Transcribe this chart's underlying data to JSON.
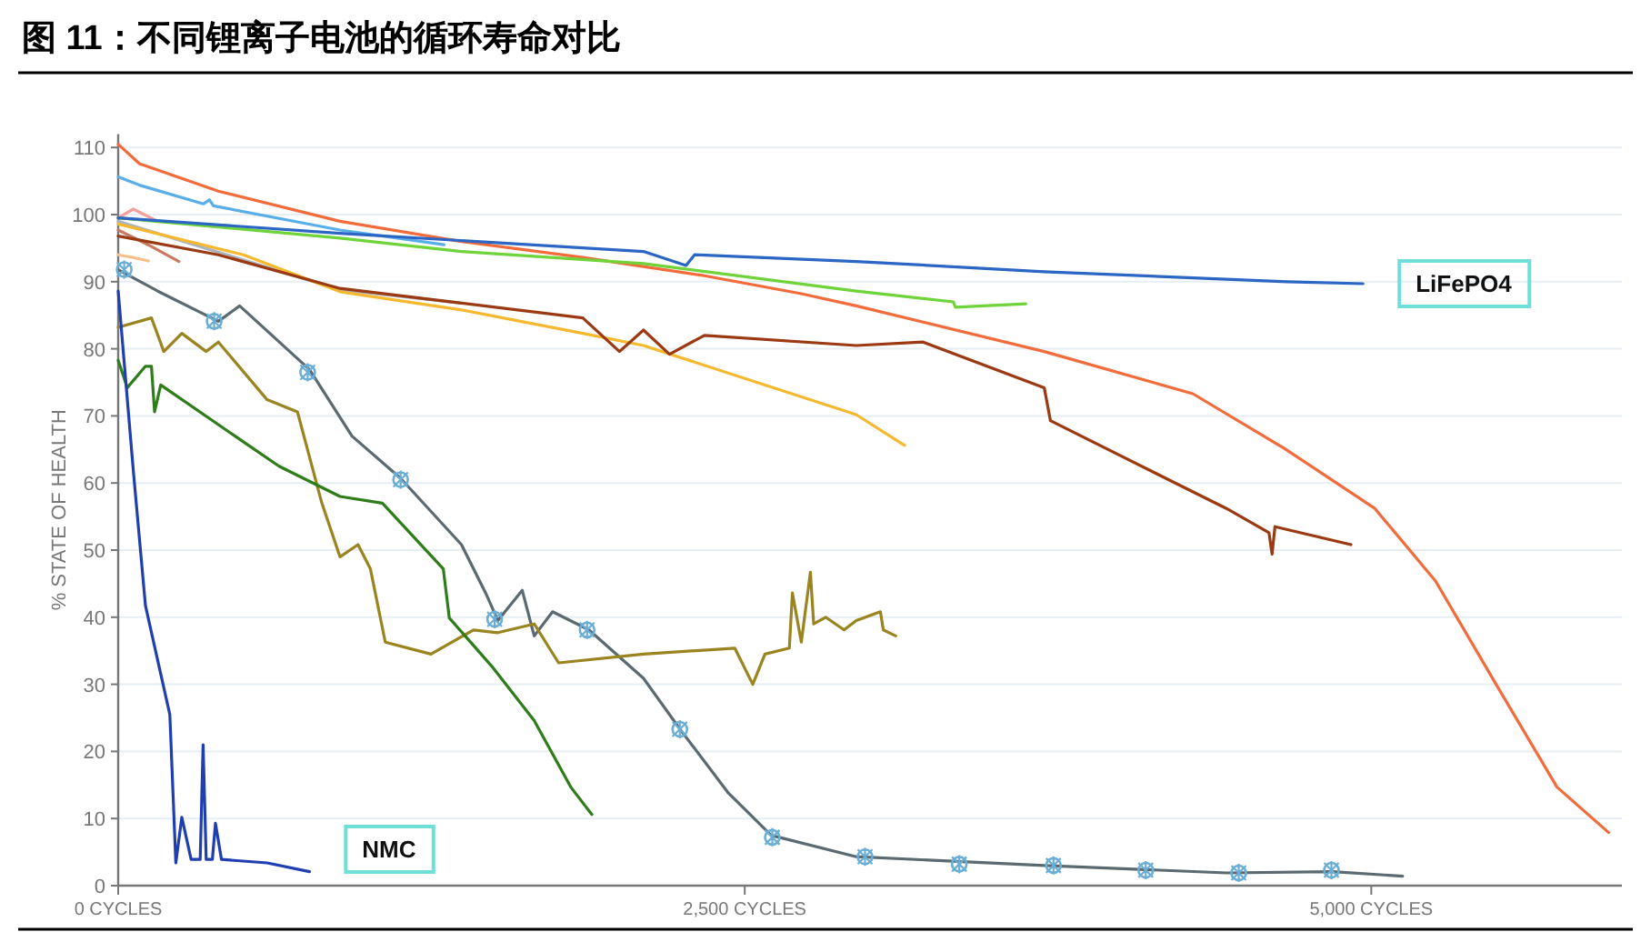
{
  "chart_data": {
    "type": "line",
    "title": "图 11：不同锂离子电池的循环寿命对比",
    "ylabel": "% STATE OF HEALTH",
    "xlim": [
      0,
      6000
    ],
    "ylim": [
      0,
      112
    ],
    "xticks": [
      {
        "value": 0,
        "label": "0 CYCLES"
      },
      {
        "value": 2500,
        "label": "2,500 CYCLES"
      },
      {
        "value": 5000,
        "label": "5,000 CYCLES"
      }
    ],
    "yticks": [
      0,
      10,
      20,
      30,
      40,
      50,
      60,
      70,
      80,
      90,
      100,
      110
    ],
    "grid": "y",
    "marker": "none",
    "line_style": "solid",
    "series": [
      {
        "color": "#f26b3a",
        "x": [
          0,
          85,
          400,
          885,
          1370,
          1854,
          2339,
          2726,
          2945,
          3695,
          4288,
          4651,
          5014,
          5256,
          5498,
          5741,
          5947
        ],
        "values": [
          110.5,
          107.6,
          103.5,
          99,
          96,
          93.6,
          90.9,
          88.2,
          86.4,
          79.6,
          73.3,
          65.2,
          56.2,
          45.4,
          30,
          14.7,
          7.9
        ]
      },
      {
        "color": "#5aaee8",
        "x": [
          0,
          85,
          340,
          364,
          380,
          885,
          1300
        ],
        "values": [
          105.6,
          104.4,
          101.6,
          102.2,
          101.3,
          97.7,
          95.5
        ]
      },
      {
        "color": "#f0a0a0",
        "x": [
          0,
          60,
          158
        ],
        "values": [
          99.5,
          100.8,
          99
        ]
      },
      {
        "color": "#c87a60",
        "x": [
          0,
          120,
          242
        ],
        "values": [
          97.7,
          95.5,
          93
        ]
      },
      {
        "color": "#f7c08a",
        "x": [
          0,
          60,
          121
        ],
        "values": [
          94,
          93.6,
          93.1
        ]
      },
      {
        "color": "#a9b4bf",
        "x": [
          0,
          885,
          1370
        ],
        "values": [
          99,
          88.8,
          86.8
        ]
      },
      {
        "color": "#6fd33a",
        "x": [
          0,
          885,
          1370,
          2096,
          2945,
          3332,
          3340,
          3622
        ],
        "values": [
          99.5,
          96.5,
          94.5,
          92.7,
          88.6,
          87,
          86.2,
          86.7
        ]
      },
      {
        "color": "#f5b82e",
        "x": [
          0,
          500,
          885,
          1370,
          1854,
          2096,
          2945,
          3138
        ],
        "values": [
          98.6,
          94,
          88.5,
          85.8,
          82.3,
          80.5,
          70.2,
          65.6
        ]
      },
      {
        "color": "#9b3a12",
        "x": [
          0,
          400,
          885,
          1370,
          1854,
          2000,
          2096,
          2200,
          2339,
          2945,
          3211,
          3695,
          3720,
          4180,
          4422,
          4592,
          4604,
          4616,
          4919
        ],
        "values": [
          96.8,
          94,
          89,
          86.8,
          84.6,
          79.6,
          82.8,
          79.2,
          82,
          80.5,
          81,
          74.2,
          69.3,
          60.7,
          56.2,
          52.6,
          49.4,
          53.5,
          50.8
        ]
      },
      {
        "color": "#2b66c4",
        "name": "LiFePO4",
        "x": [
          0,
          885,
          2096,
          2266,
          2300,
          2945,
          3695,
          4664,
          4967
        ],
        "values": [
          99.5,
          97.2,
          94.5,
          92.4,
          94,
          93,
          91.5,
          90,
          89.7
        ]
      },
      {
        "color": "#5a6a70",
        "x": [
          0,
          158,
          400,
          485,
          763,
          933,
          1127,
          1370,
          1466,
          1515,
          1612,
          1660,
          1733,
          1878,
          2096,
          2242,
          2435,
          2605,
          2945,
          3695,
          4422,
          4846,
          5125
        ],
        "values": [
          91.8,
          88.6,
          84.1,
          86.4,
          76.9,
          67,
          60.7,
          50.8,
          43.6,
          39.5,
          44,
          37.2,
          40.8,
          38.1,
          30.9,
          23.3,
          13.8,
          7.5,
          4.3,
          3,
          1.9,
          2.1,
          1.4
        ]
      },
      {
        "color": "#9a8420",
        "x": [
          0,
          133,
          182,
          254,
          351,
          400,
          594,
          715,
          812,
          885,
          957,
          1006,
          1066,
          1248,
          1418,
          1515,
          1660,
          1757,
          2096,
          2460,
          2532,
          2581,
          2678,
          2690,
          2726,
          2762,
          2775,
          2823,
          2896,
          2945,
          3041,
          3053,
          3102
        ],
        "values": [
          83.2,
          84.6,
          79.6,
          82.3,
          79.6,
          81,
          72.4,
          70.6,
          57.1,
          49,
          50.8,
          47.2,
          36.3,
          34.5,
          38.1,
          37.7,
          39,
          33.2,
          34.5,
          35.4,
          30,
          34.5,
          35.4,
          43.6,
          36.3,
          46.7,
          39,
          40,
          38.1,
          39.5,
          40.8,
          38.1,
          37.2
        ]
      },
      {
        "color": "#2e7d1a",
        "x": [
          0,
          36,
          109,
          133,
          145,
          170,
          400,
          642,
          885,
          1054,
          1297,
          1321,
          1490,
          1660,
          1806,
          1890
        ],
        "values": [
          78.3,
          74.2,
          77.4,
          77.4,
          70.6,
          74.6,
          68.7,
          62.5,
          58,
          57,
          47.2,
          39.9,
          32.7,
          24.6,
          14.7,
          10.6
        ]
      },
      {
        "color": "#1f3fb0",
        "name": "NMC",
        "x": [
          0,
          61,
          109,
          206,
          230,
          254,
          291,
          327,
          339,
          351,
          376,
          388,
          412,
          594,
          763
        ],
        "values": [
          88.6,
          61.6,
          41.7,
          25.5,
          3.4,
          10.2,
          3.9,
          3.9,
          21,
          3.9,
          3.9,
          9.3,
          3.9,
          3.4,
          2.1
        ]
      },
      {
        "type": "scatter",
        "marker": "circle",
        "color": "#6aaed6",
        "x": [
          24,
          383,
          756,
          1127,
          1502,
          1871,
          2241,
          2610,
          2980,
          3356,
          3732,
          4100,
          4471,
          4841
        ],
        "values": [
          91.8,
          84.1,
          76.5,
          60.5,
          39.7,
          38.1,
          23.3,
          7.2,
          4.3,
          3.2,
          3,
          2.3,
          1.9,
          2.3
        ]
      }
    ]
  }
}
